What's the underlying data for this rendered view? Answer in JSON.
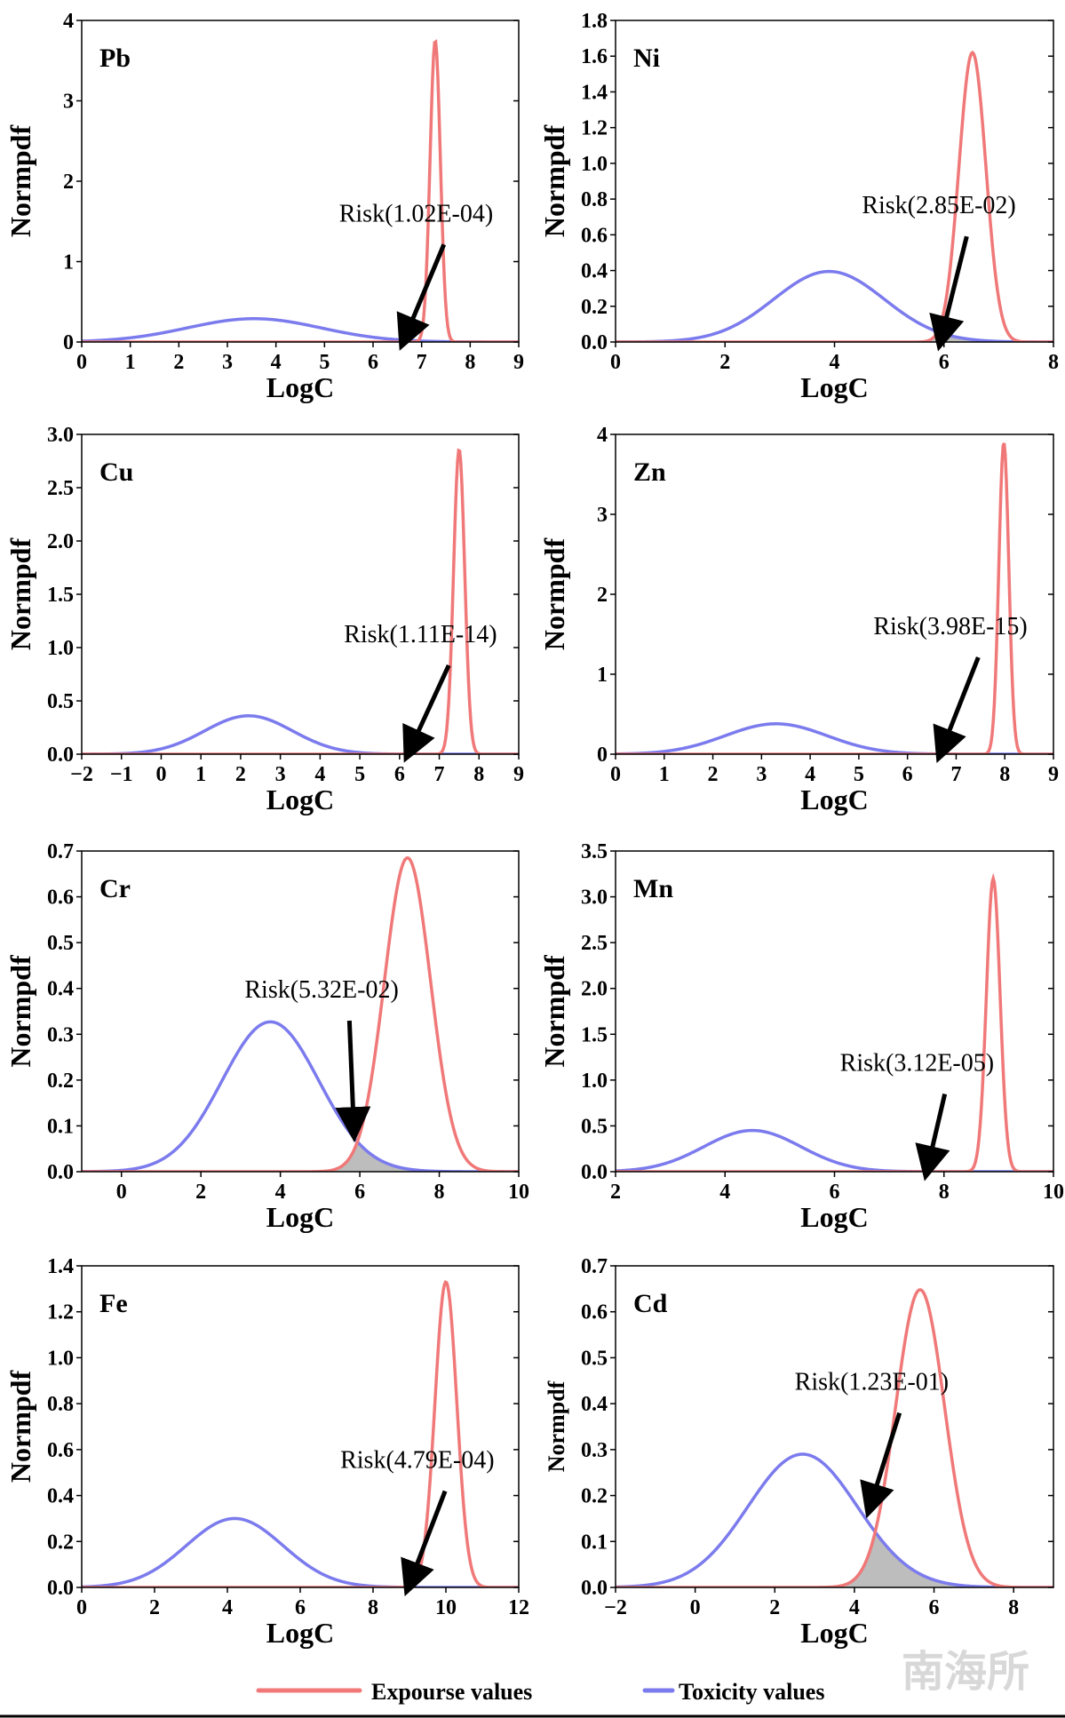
{
  "colors": {
    "exposure": "#f07878",
    "toxicity": "#7b7bee",
    "overlap_fill": "#bdbdbd",
    "axis": "#000000"
  },
  "legend": {
    "items": [
      {
        "label": "Expourse values",
        "series": "exposure"
      },
      {
        "label": "Toxicity values",
        "series": "toxicity"
      }
    ]
  },
  "watermark": {
    "text": "南海所"
  },
  "chart_data": [
    {
      "type": "line",
      "title": "Pb",
      "xlabel": "LogC",
      "ylabel": "Normpdf",
      "xlim": [
        0,
        9
      ],
      "ylim": [
        0,
        4
      ],
      "xticks": [
        0,
        1,
        2,
        3,
        4,
        5,
        6,
        7,
        8,
        9
      ],
      "yticks": [
        0,
        1,
        2,
        3,
        4
      ],
      "ytick_labels": [
        "0",
        "1",
        "2",
        "3",
        "4"
      ],
      "series": [
        {
          "name": "Toxicity values",
          "distribution": "normal",
          "mean": 3.55,
          "peak": 0.29
        },
        {
          "name": "Expourse values",
          "distribution": "normal",
          "mean": 7.28,
          "peak": 3.75
        }
      ],
      "annotation": {
        "text": "Risk(1.02E-04)",
        "arrow_to_x": 6.65,
        "label_anchor": [
          5.3,
          1.5
        ]
      },
      "shaded_overlap": false
    },
    {
      "type": "line",
      "title": "Ni",
      "xlabel": "LogC",
      "ylabel": "Normpdf",
      "xlim": [
        0,
        8
      ],
      "ylim": [
        0,
        1.8
      ],
      "xticks": [
        0,
        2,
        4,
        6,
        8
      ],
      "yticks": [
        0,
        0.2,
        0.4,
        0.6,
        0.8,
        1.0,
        1.2,
        1.4,
        1.6,
        1.8
      ],
      "ytick_labels": [
        "0.0",
        "0.2",
        "0.4",
        "0.6",
        "0.8",
        "1.0",
        "1.2",
        "1.4",
        "1.6",
        "1.8"
      ],
      "series": [
        {
          "name": "Toxicity values",
          "distribution": "normal",
          "mean": 3.9,
          "peak": 0.395
        },
        {
          "name": "Expourse values",
          "distribution": "normal",
          "mean": 6.52,
          "peak": 1.62
        }
      ],
      "annotation": {
        "text": "Risk(2.85E-02)",
        "arrow_to_x": 5.95,
        "label_anchor": [
          4.5,
          0.72
        ]
      },
      "shaded_overlap": true
    },
    {
      "type": "line",
      "title": "Cu",
      "xlabel": "LogC",
      "ylabel": "Normpdf",
      "xlim": [
        -2,
        9
      ],
      "ylim": [
        0,
        3.0
      ],
      "xticks": [
        -2,
        -1,
        0,
        1,
        2,
        3,
        4,
        5,
        6,
        7,
        8,
        9
      ],
      "xtick_labels": [
        "−2",
        "−1",
        "0",
        "1",
        "2",
        "3",
        "4",
        "5",
        "6",
        "7",
        "8",
        "9"
      ],
      "yticks": [
        0,
        0.5,
        1.0,
        1.5,
        2.0,
        2.5,
        3.0
      ],
      "ytick_labels": [
        "0.0",
        "0.5",
        "1.0",
        "1.5",
        "2.0",
        "2.5",
        "3.0"
      ],
      "series": [
        {
          "name": "Toxicity values",
          "distribution": "normal",
          "mean": 2.2,
          "peak": 0.36
        },
        {
          "name": "Expourse values",
          "distribution": "normal",
          "mean": 7.5,
          "peak": 2.86
        }
      ],
      "annotation": {
        "text": "Risk(1.11E-14)",
        "arrow_to_x": 6.25,
        "label_anchor": [
          4.6,
          1.05
        ]
      },
      "shaded_overlap": false
    },
    {
      "type": "line",
      "title": "Zn",
      "xlabel": "LogC",
      "ylabel": "Normpdf",
      "xlim": [
        0,
        9
      ],
      "ylim": [
        0,
        4
      ],
      "xticks": [
        0,
        1,
        2,
        3,
        4,
        5,
        6,
        7,
        8,
        9
      ],
      "yticks": [
        0,
        1,
        2,
        3,
        4
      ],
      "ytick_labels": [
        "0",
        "1",
        "2",
        "3",
        "4"
      ],
      "series": [
        {
          "name": "Toxicity values",
          "distribution": "normal",
          "mean": 3.3,
          "peak": 0.38
        },
        {
          "name": "Expourse values",
          "distribution": "normal",
          "mean": 7.98,
          "peak": 3.9
        }
      ],
      "annotation": {
        "text": "Risk(3.98E-15)",
        "arrow_to_x": 6.7,
        "label_anchor": [
          5.3,
          1.5
        ]
      },
      "shaded_overlap": false
    },
    {
      "type": "line",
      "title": "Cr",
      "xlabel": "LogC",
      "ylabel": "Normpdf",
      "xlim": [
        -1,
        10
      ],
      "ylim": [
        0,
        0.7
      ],
      "xticks": [
        0,
        2,
        4,
        6,
        8,
        10
      ],
      "yticks": [
        0,
        0.1,
        0.2,
        0.3,
        0.4,
        0.5,
        0.6,
        0.7
      ],
      "ytick_labels": [
        "0.0",
        "0.1",
        "0.2",
        "0.3",
        "0.4",
        "0.5",
        "0.6",
        "0.7"
      ],
      "series": [
        {
          "name": "Toxicity values",
          "distribution": "normal",
          "mean": 3.75,
          "peak": 0.327
        },
        {
          "name": "Expourse values",
          "distribution": "normal",
          "mean": 7.2,
          "peak": 0.685
        }
      ],
      "annotation": {
        "text": "Risk(5.32E-02)",
        "arrow_to_x": 5.85,
        "arrow_to_y": 0.085,
        "label_anchor": [
          3.1,
          0.38
        ]
      },
      "shaded_overlap": true
    },
    {
      "type": "line",
      "title": "Mn",
      "xlabel": "LogC",
      "ylabel": "Normpdf",
      "xlim": [
        2,
        10
      ],
      "ylim": [
        0,
        3.5
      ],
      "xticks": [
        2,
        4,
        6,
        8,
        10
      ],
      "yticks": [
        0,
        0.5,
        1.0,
        1.5,
        2.0,
        2.5,
        3.0,
        3.5
      ],
      "ytick_labels": [
        "0.0",
        "0.5",
        "1.0",
        "1.5",
        "2.0",
        "2.5",
        "3.0",
        "3.5"
      ],
      "series": [
        {
          "name": "Toxicity values",
          "distribution": "normal",
          "mean": 4.5,
          "peak": 0.45
        },
        {
          "name": "Expourse values",
          "distribution": "normal",
          "mean": 8.9,
          "peak": 3.2
        }
      ],
      "annotation": {
        "text": "Risk(3.12E-05)",
        "arrow_to_x": 7.7,
        "label_anchor": [
          6.1,
          1.1
        ]
      },
      "shaded_overlap": false
    },
    {
      "type": "line",
      "title": "Fe",
      "xlabel": "LogC",
      "ylabel": "Normpdf",
      "xlim": [
        0,
        12
      ],
      "ylim": [
        0,
        1.4
      ],
      "xticks": [
        0,
        2,
        4,
        6,
        8,
        10,
        12
      ],
      "yticks": [
        0,
        0.2,
        0.4,
        0.6,
        0.8,
        1.0,
        1.2,
        1.4
      ],
      "ytick_labels": [
        "0.0",
        "0.2",
        "0.4",
        "0.6",
        "0.8",
        "1.0",
        "1.2",
        "1.4"
      ],
      "series": [
        {
          "name": "Toxicity values",
          "distribution": "normal",
          "mean": 4.2,
          "peak": 0.3
        },
        {
          "name": "Expourse values",
          "distribution": "normal",
          "mean": 10.0,
          "peak": 1.33
        }
      ],
      "annotation": {
        "text": "Risk(4.79E-04)",
        "arrow_to_x": 9.0,
        "label_anchor": [
          7.1,
          0.52
        ]
      },
      "shaded_overlap": false
    },
    {
      "type": "line",
      "title": "Cd",
      "xlabel": "LogC",
      "ylabel": "Normpdf",
      "xlim": [
        -2,
        9
      ],
      "ylim": [
        0,
        0.7
      ],
      "xticks": [
        -2,
        0,
        2,
        4,
        6,
        8
      ],
      "xtick_labels": [
        "−2",
        "0",
        "2",
        "4",
        "6",
        "8"
      ],
      "yticks": [
        0,
        0.1,
        0.2,
        0.3,
        0.4,
        0.5,
        0.6,
        0.7
      ],
      "ytick_labels": [
        "0.0",
        "0.1",
        "0.2",
        "0.3",
        "0.4",
        "0.5",
        "0.6",
        "0.7"
      ],
      "series": [
        {
          "name": "Toxicity values",
          "distribution": "normal",
          "mean": 2.7,
          "peak": 0.29
        },
        {
          "name": "Expourse values",
          "distribution": "normal",
          "mean": 5.65,
          "peak": 0.648
        }
      ],
      "annotation": {
        "text": "Risk(1.23E-01)",
        "arrow_to_x": 4.4,
        "arrow_to_y": 0.17,
        "label_anchor": [
          2.5,
          0.43
        ]
      },
      "shaded_overlap": true
    }
  ]
}
